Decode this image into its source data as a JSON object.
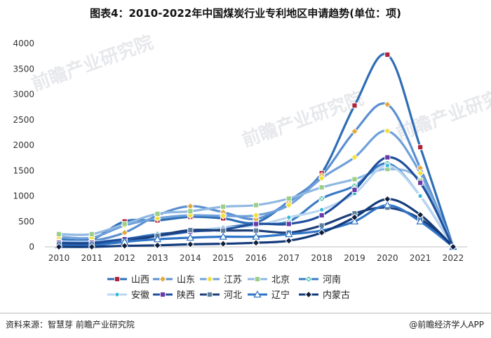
{
  "page": {
    "title": "图表4：2010-2022年中国煤炭行业专利地区申请趋势(单位：项)",
    "source": "资料来源：智慧芽 前瞻产业研究院",
    "brand": "@前瞻经济学人APP",
    "watermark": "前瞻产业研究院"
  },
  "chart_data": {
    "type": "line",
    "title": "图表4：2010-2022年中国煤炭行业专利地区申请趋势(单位：项)",
    "xlabel": "",
    "ylabel": "",
    "categories": [
      "2010",
      "2011",
      "2012",
      "2013",
      "2014",
      "2015",
      "2016",
      "2017",
      "2018",
      "2019",
      "2020",
      "2021",
      "2022"
    ],
    "ylim": [
      0,
      4000
    ],
    "yticks": [
      0,
      500,
      1000,
      1500,
      2000,
      2500,
      3000,
      3500,
      4000
    ],
    "grid": false,
    "legend_position": "bottom",
    "series": [
      {
        "name": "山西",
        "color": "#2e6db5",
        "marker": "square",
        "marker_color": "#b0213a",
        "values": [
          150,
          150,
          500,
          520,
          590,
          560,
          480,
          900,
          1450,
          2780,
          3780,
          1960,
          0
        ]
      },
      {
        "name": "山东",
        "color": "#5b8fd0",
        "marker": "diamond",
        "marker_color": "#e3a93b",
        "values": [
          120,
          120,
          280,
          620,
          800,
          680,
          550,
          880,
          1400,
          2270,
          2800,
          1550,
          0
        ]
      },
      {
        "name": "江苏",
        "color": "#6fa0da",
        "marker": "diamond",
        "marker_color": "#f2e13a",
        "values": [
          200,
          180,
          420,
          560,
          620,
          610,
          620,
          820,
          1350,
          1760,
          2280,
          1450,
          0
        ]
      },
      {
        "name": "北京",
        "color": "#8fb8e2",
        "marker": "square",
        "marker_color": "#9bcf86",
        "values": [
          250,
          250,
          450,
          650,
          700,
          790,
          820,
          950,
          1170,
          1330,
          1530,
          1300,
          0
        ]
      },
      {
        "name": "河南",
        "color": "#3a7cc4",
        "marker": "x-square",
        "marker_color": "#35b3a0",
        "values": [
          50,
          80,
          150,
          250,
          300,
          380,
          450,
          500,
          950,
          1200,
          1640,
          1000,
          0
        ]
      },
      {
        "name": "安徽",
        "color": "#b9d6f2",
        "marker": "circle",
        "marker_color": "#36b9d8",
        "values": [
          100,
          100,
          150,
          200,
          300,
          380,
          420,
          580,
          730,
          1050,
          1600,
          1000,
          0
        ]
      },
      {
        "name": "陕西",
        "color": "#1f4f9c",
        "marker": "square",
        "marker_color": "#6a3aa8",
        "values": [
          80,
          80,
          150,
          220,
          300,
          340,
          450,
          450,
          620,
          1120,
          1760,
          1260,
          0
        ]
      },
      {
        "name": "河北",
        "color": "#1d3f7a",
        "marker": "square",
        "marker_color": "#5e7f9e",
        "values": [
          50,
          50,
          100,
          220,
          330,
          320,
          320,
          280,
          420,
          660,
          770,
          550,
          0
        ]
      },
      {
        "name": "辽宁",
        "color": "#2f74c6",
        "marker": "triangle",
        "marker_color": "#ffffff",
        "values": [
          30,
          30,
          100,
          150,
          180,
          200,
          200,
          250,
          320,
          500,
          820,
          500,
          0
        ]
      },
      {
        "name": "内蒙古",
        "color": "#123a7a",
        "marker": "diamond",
        "marker_color": "#0e1d3a",
        "values": [
          0,
          0,
          20,
          30,
          50,
          60,
          80,
          120,
          280,
          580,
          940,
          630,
          0
        ]
      }
    ]
  }
}
